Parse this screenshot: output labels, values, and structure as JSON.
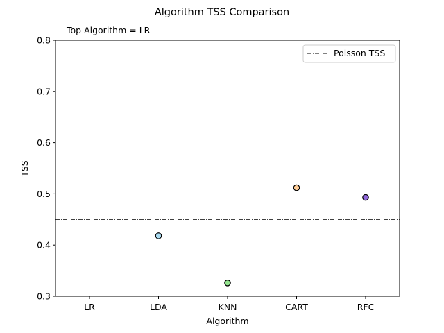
{
  "chart_data": {
    "type": "scatter",
    "title": "Algorithm TSS Comparison",
    "xlabel": "Algorithm",
    "ylabel": "TSS",
    "annotation": "Top Algorithm = LR",
    "categories": [
      "LR",
      "LDA",
      "KNN",
      "CART",
      "RFC"
    ],
    "values": [
      null,
      0.418,
      0.326,
      0.512,
      0.493
    ],
    "point_colors": [
      null,
      "#aadcf2",
      "#93e48e",
      "#ffcd97",
      "#9067dc"
    ],
    "ylim": [
      0.3,
      0.8
    ],
    "yticks": [
      "0.3",
      "0.4",
      "0.5",
      "0.6",
      "0.7",
      "0.8"
    ],
    "reference_line": {
      "name": "Poisson TSS",
      "value": 0.45,
      "style": "dash-dot",
      "color": "#000000"
    },
    "legend": {
      "placement": "top-right",
      "entries": [
        "Poisson TSS"
      ]
    },
    "grid": false
  }
}
